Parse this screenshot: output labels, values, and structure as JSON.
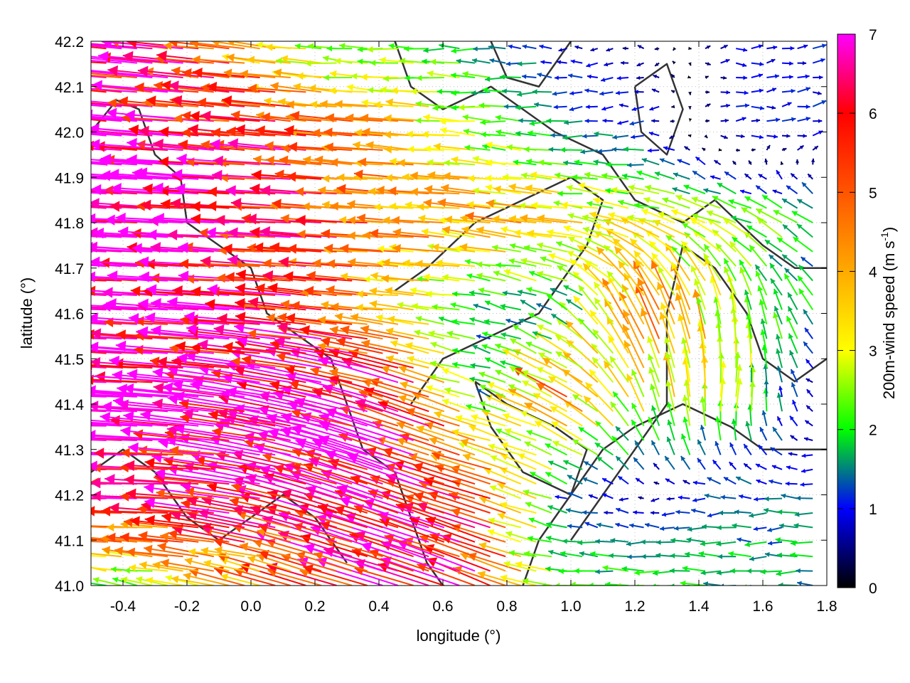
{
  "chart_data": {
    "type": "vector-field",
    "xlabel": "longitude (°)",
    "ylabel": "latitude (°)",
    "xlim": [
      -0.5,
      1.8
    ],
    "ylim": [
      41.0,
      42.2
    ],
    "xticks": [
      "-0.4",
      "-0.2",
      "0.0",
      "0.2",
      "0.4",
      "0.6",
      "0.8",
      "1.0",
      "1.2",
      "1.4",
      "1.6",
      "1.8"
    ],
    "xtick_values": [
      -0.4,
      -0.2,
      0.0,
      0.2,
      0.4,
      0.6,
      0.8,
      1.0,
      1.2,
      1.4,
      1.6,
      1.8
    ],
    "yticks": [
      "41.0",
      "41.1",
      "41.2",
      "41.3",
      "41.4",
      "41.5",
      "41.6",
      "41.7",
      "41.8",
      "41.9",
      "42.0",
      "42.1",
      "42.2"
    ],
    "ytick_values": [
      41.0,
      41.1,
      41.2,
      41.3,
      41.4,
      41.5,
      41.6,
      41.7,
      41.8,
      41.9,
      42.0,
      42.1,
      42.2
    ],
    "grid": true,
    "colorbar": {
      "label": "200m-wind speed (m s",
      "label_sup": "-1",
      "label_end": ")",
      "range": [
        0,
        7
      ],
      "ticks": [
        "0",
        "1",
        "2",
        "3",
        "4",
        "5",
        "6",
        "7"
      ],
      "tick_values": [
        0,
        1,
        2,
        3,
        4,
        5,
        6,
        7
      ],
      "colors": [
        "#000000",
        "#0000ff",
        "#00ff00",
        "#ffff00",
        "#ffaa00",
        "#ff5500",
        "#ff0000",
        "#ff00ff"
      ]
    },
    "wind_grid": {
      "lon": [
        -0.5,
        -0.25,
        0.0,
        0.25,
        0.5,
        0.75,
        1.0,
        1.25,
        1.5,
        1.8
      ],
      "lat": [
        42.2,
        42.0,
        41.8,
        41.6,
        41.4,
        41.2,
        41.0
      ],
      "u": [
        [
          -6.5,
          -6,
          -4,
          -2,
          -2.2,
          -1.5,
          -0.8,
          -0.5,
          0.8,
          1
        ],
        [
          -7,
          -7,
          -6,
          -5,
          -4,
          -2.5,
          -1.5,
          -1,
          1,
          1
        ],
        [
          -7,
          -7,
          -6.5,
          -5.5,
          -4.5,
          -4,
          -3.5,
          -3,
          -2.5,
          -1.5
        ],
        [
          -7,
          -7,
          -6.5,
          -5.5,
          -3,
          -1.5,
          -1.5,
          -2,
          -0.5,
          -1
        ],
        [
          -7,
          -7,
          -7,
          -7,
          -6,
          -1.5,
          -4,
          -1,
          0.5,
          -0.8
        ],
        [
          -6.5,
          -6.5,
          -6.5,
          -6.5,
          -7,
          -5,
          -1,
          -0.5,
          -1.2,
          -1.5
        ],
        [
          -2,
          -2.5,
          -4,
          -5,
          -6.5,
          -5,
          -2,
          -2,
          -1.8,
          -1.6
        ]
      ],
      "v": [
        [
          0.5,
          0.6,
          0.5,
          0.2,
          0,
          0,
          0,
          0,
          0,
          0
        ],
        [
          0.6,
          0.6,
          0.5,
          0.4,
          0.3,
          0.2,
          0,
          0,
          0,
          0.3
        ],
        [
          0.3,
          0.3,
          0.3,
          0.3,
          0.3,
          0.5,
          0.5,
          0.8,
          1,
          1
        ],
        [
          0.4,
          0.4,
          0.5,
          0.6,
          0.3,
          0.3,
          1,
          4,
          3,
          1
        ],
        [
          0.2,
          0.5,
          1,
          1.5,
          2,
          0.5,
          2,
          3,
          3,
          0
        ],
        [
          0,
          0.2,
          1,
          2,
          2.5,
          1.5,
          0.5,
          0,
          0,
          0
        ],
        [
          0.5,
          0.5,
          1,
          1.5,
          2,
          2,
          0,
          0,
          0,
          0
        ]
      ]
    },
    "contours": [
      [
        [
          -0.5,
          42.0
        ],
        [
          -0.42,
          42.07
        ],
        [
          -0.35,
          42.05
        ],
        [
          -0.3,
          41.95
        ],
        [
          -0.22,
          41.9
        ],
        [
          -0.2,
          41.8
        ],
        [
          -0.1,
          41.75
        ],
        [
          0.0,
          41.7
        ],
        [
          0.05,
          41.6
        ],
        [
          0.15,
          41.55
        ],
        [
          0.25,
          41.5
        ],
        [
          0.3,
          41.4
        ],
        [
          0.35,
          41.3
        ],
        [
          0.45,
          41.25
        ],
        [
          0.5,
          41.15
        ],
        [
          0.55,
          41.05
        ],
        [
          0.6,
          41.0
        ]
      ],
      [
        [
          0.45,
          42.2
        ],
        [
          0.5,
          42.1
        ],
        [
          0.6,
          42.05
        ],
        [
          0.75,
          42.1
        ],
        [
          0.85,
          42.05
        ],
        [
          0.95,
          42.0
        ],
        [
          1.1,
          41.95
        ],
        [
          1.2,
          41.85
        ],
        [
          1.35,
          41.8
        ],
        [
          1.45,
          41.85
        ],
        [
          1.6,
          41.75
        ],
        [
          1.7,
          41.7
        ],
        [
          1.8,
          41.7
        ]
      ],
      [
        [
          0.85,
          41.0
        ],
        [
          0.9,
          41.1
        ],
        [
          1.0,
          41.2
        ],
        [
          1.1,
          41.3
        ],
        [
          1.2,
          41.35
        ],
        [
          1.35,
          41.4
        ],
        [
          1.5,
          41.35
        ],
        [
          1.6,
          41.3
        ],
        [
          1.8,
          41.3
        ]
      ],
      [
        [
          1.0,
          41.1
        ],
        [
          1.1,
          41.2
        ],
        [
          1.2,
          41.3
        ],
        [
          1.3,
          41.4
        ],
        [
          1.3,
          41.6
        ],
        [
          1.35,
          41.75
        ],
        [
          1.45,
          41.7
        ],
        [
          1.55,
          41.6
        ],
        [
          1.6,
          41.5
        ],
        [
          1.7,
          41.45
        ],
        [
          1.8,
          41.5
        ]
      ],
      [
        [
          0.5,
          41.4
        ],
        [
          0.6,
          41.5
        ],
        [
          0.75,
          41.55
        ],
        [
          0.9,
          41.6
        ],
        [
          1.05,
          41.75
        ],
        [
          1.1,
          41.85
        ],
        [
          1.0,
          41.9
        ],
        [
          0.85,
          41.85
        ],
        [
          0.7,
          41.8
        ],
        [
          0.55,
          41.7
        ],
        [
          0.45,
          41.65
        ]
      ],
      [
        [
          -0.5,
          41.25
        ],
        [
          -0.4,
          41.3
        ],
        [
          -0.3,
          41.25
        ],
        [
          -0.2,
          41.15
        ],
        [
          -0.1,
          41.1
        ],
        [
          0.0,
          41.15
        ],
        [
          0.1,
          41.2
        ],
        [
          0.2,
          41.15
        ],
        [
          0.3,
          41.05
        ]
      ],
      [
        [
          1.2,
          42.1
        ],
        [
          1.3,
          42.15
        ],
        [
          1.35,
          42.05
        ],
        [
          1.3,
          41.95
        ],
        [
          1.22,
          42.0
        ],
        [
          1.2,
          42.1
        ]
      ],
      [
        [
          0.75,
          42.2
        ],
        [
          0.8,
          42.12
        ],
        [
          0.9,
          42.1
        ],
        [
          0.95,
          42.15
        ],
        [
          1.0,
          42.2
        ]
      ],
      [
        [
          0.7,
          41.45
        ],
        [
          0.8,
          41.4
        ],
        [
          0.95,
          41.35
        ],
        [
          1.05,
          41.3
        ],
        [
          1.0,
          41.2
        ],
        [
          0.85,
          41.25
        ],
        [
          0.75,
          41.35
        ],
        [
          0.7,
          41.45
        ]
      ]
    ]
  }
}
